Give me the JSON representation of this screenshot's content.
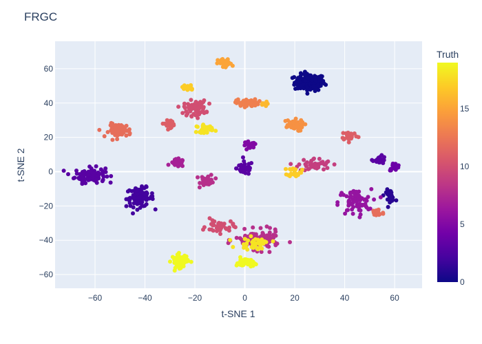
{
  "chart_data": {
    "type": "scatter",
    "title": "FRGC",
    "xlabel": "t-SNE 1",
    "ylabel": "t-SNE 2",
    "xlim": [
      -76,
      71
    ],
    "ylim": [
      -68,
      76
    ],
    "xticks": [
      -60,
      -40,
      -20,
      0,
      20,
      40,
      60
    ],
    "yticks": [
      -60,
      -40,
      -20,
      0,
      20,
      40,
      60
    ],
    "grid": true,
    "colorbar": {
      "title": "Truth",
      "min": 0,
      "max": 19,
      "ticks": [
        0,
        5,
        10,
        15
      ],
      "colorscale": [
        "#0d0887",
        "#46039f",
        "#7201a8",
        "#9c179e",
        "#bd3786",
        "#d8576b",
        "#ed7953",
        "#fb9f3a",
        "#fdca26",
        "#f0f921"
      ]
    },
    "clusters": [
      {
        "x": 26,
        "y": 52,
        "truth": 0,
        "spread_x": 5.5,
        "spread_y": 4.5,
        "count": 140
      },
      {
        "x": -62,
        "y": -2,
        "truth": 3,
        "spread_x": 5.5,
        "spread_y": 4.0,
        "count": 110
      },
      {
        "x": -42,
        "y": -15,
        "truth": 2,
        "spread_x": 5.0,
        "spread_y": 5.0,
        "count": 90
      },
      {
        "x": 0,
        "y": 2,
        "truth": 3,
        "spread_x": 3.0,
        "spread_y": 3.5,
        "count": 45
      },
      {
        "x": 2,
        "y": 15,
        "truth": 5,
        "spread_x": 2.5,
        "spread_y": 2.5,
        "count": 25
      },
      {
        "x": -27,
        "y": 5,
        "truth": 7,
        "spread_x": 2.5,
        "spread_y": 2.0,
        "count": 30
      },
      {
        "x": -15,
        "y": -5,
        "truth": 8,
        "spread_x": 2.5,
        "spread_y": 3.0,
        "count": 35
      },
      {
        "x": 54,
        "y": 7,
        "truth": 3,
        "spread_x": 2.5,
        "spread_y": 2.0,
        "count": 20
      },
      {
        "x": 60,
        "y": 3,
        "truth": 4,
        "spread_x": 2.0,
        "spread_y": 2.0,
        "count": 18
      },
      {
        "x": 58,
        "y": -14,
        "truth": 1,
        "spread_x": 2.0,
        "spread_y": 3.0,
        "count": 25
      },
      {
        "x": 44,
        "y": -18,
        "truth": 6,
        "spread_x": 6.0,
        "spread_y": 7.0,
        "count": 70
      },
      {
        "x": 53,
        "y": -24,
        "truth": 12,
        "spread_x": 2.5,
        "spread_y": 2.5,
        "count": 25
      },
      {
        "x": 42,
        "y": 21,
        "truth": 11,
        "spread_x": 3.0,
        "spread_y": 2.5,
        "count": 30
      },
      {
        "x": 28,
        "y": 4,
        "truth": 9,
        "spread_x": 6.0,
        "spread_y": 3.5,
        "count": 45
      },
      {
        "x": 20,
        "y": 0,
        "truth": 17,
        "spread_x": 2.5,
        "spread_y": 2.5,
        "count": 25
      },
      {
        "x": 19,
        "y": 27,
        "truth": 14,
        "spread_x": 4.0,
        "spread_y": 3.0,
        "count": 55
      },
      {
        "x": 1,
        "y": 40,
        "truth": 13,
        "spread_x": 4.0,
        "spread_y": 2.0,
        "count": 60
      },
      {
        "x": 8,
        "y": 39,
        "truth": 16,
        "spread_x": 1.5,
        "spread_y": 1.5,
        "count": 10
      },
      {
        "x": -8,
        "y": 63,
        "truth": 15,
        "spread_x": 2.5,
        "spread_y": 2.5,
        "count": 30
      },
      {
        "x": -23,
        "y": 49,
        "truth": 17,
        "spread_x": 2.5,
        "spread_y": 1.5,
        "count": 25
      },
      {
        "x": -20,
        "y": 37,
        "truth": 10,
        "spread_x": 4.0,
        "spread_y": 4.0,
        "count": 70
      },
      {
        "x": -30,
        "y": 28,
        "truth": 11,
        "spread_x": 3.0,
        "spread_y": 2.0,
        "count": 25
      },
      {
        "x": -50,
        "y": 24,
        "truth": 12,
        "spread_x": 4.0,
        "spread_y": 3.5,
        "count": 70
      },
      {
        "x": -16,
        "y": 25,
        "truth": 18,
        "spread_x": 3.0,
        "spread_y": 2.0,
        "count": 30
      },
      {
        "x": -26,
        "y": -52,
        "truth": 19,
        "spread_x": 3.0,
        "spread_y": 3.5,
        "count": 70
      },
      {
        "x": 0,
        "y": -53,
        "truth": 19,
        "spread_x": 3.0,
        "spread_y": 2.5,
        "count": 45
      },
      {
        "x": 5,
        "y": -40,
        "truth": 8,
        "spread_x": 8.0,
        "spread_y": 5.0,
        "count": 120
      },
      {
        "x": -10,
        "y": -32,
        "truth": 10,
        "spread_x": 5.0,
        "spread_y": 3.5,
        "count": 40
      },
      {
        "x": 4,
        "y": -42,
        "truth": 18,
        "spread_x": 6.0,
        "spread_y": 3.0,
        "count": 40
      }
    ]
  }
}
